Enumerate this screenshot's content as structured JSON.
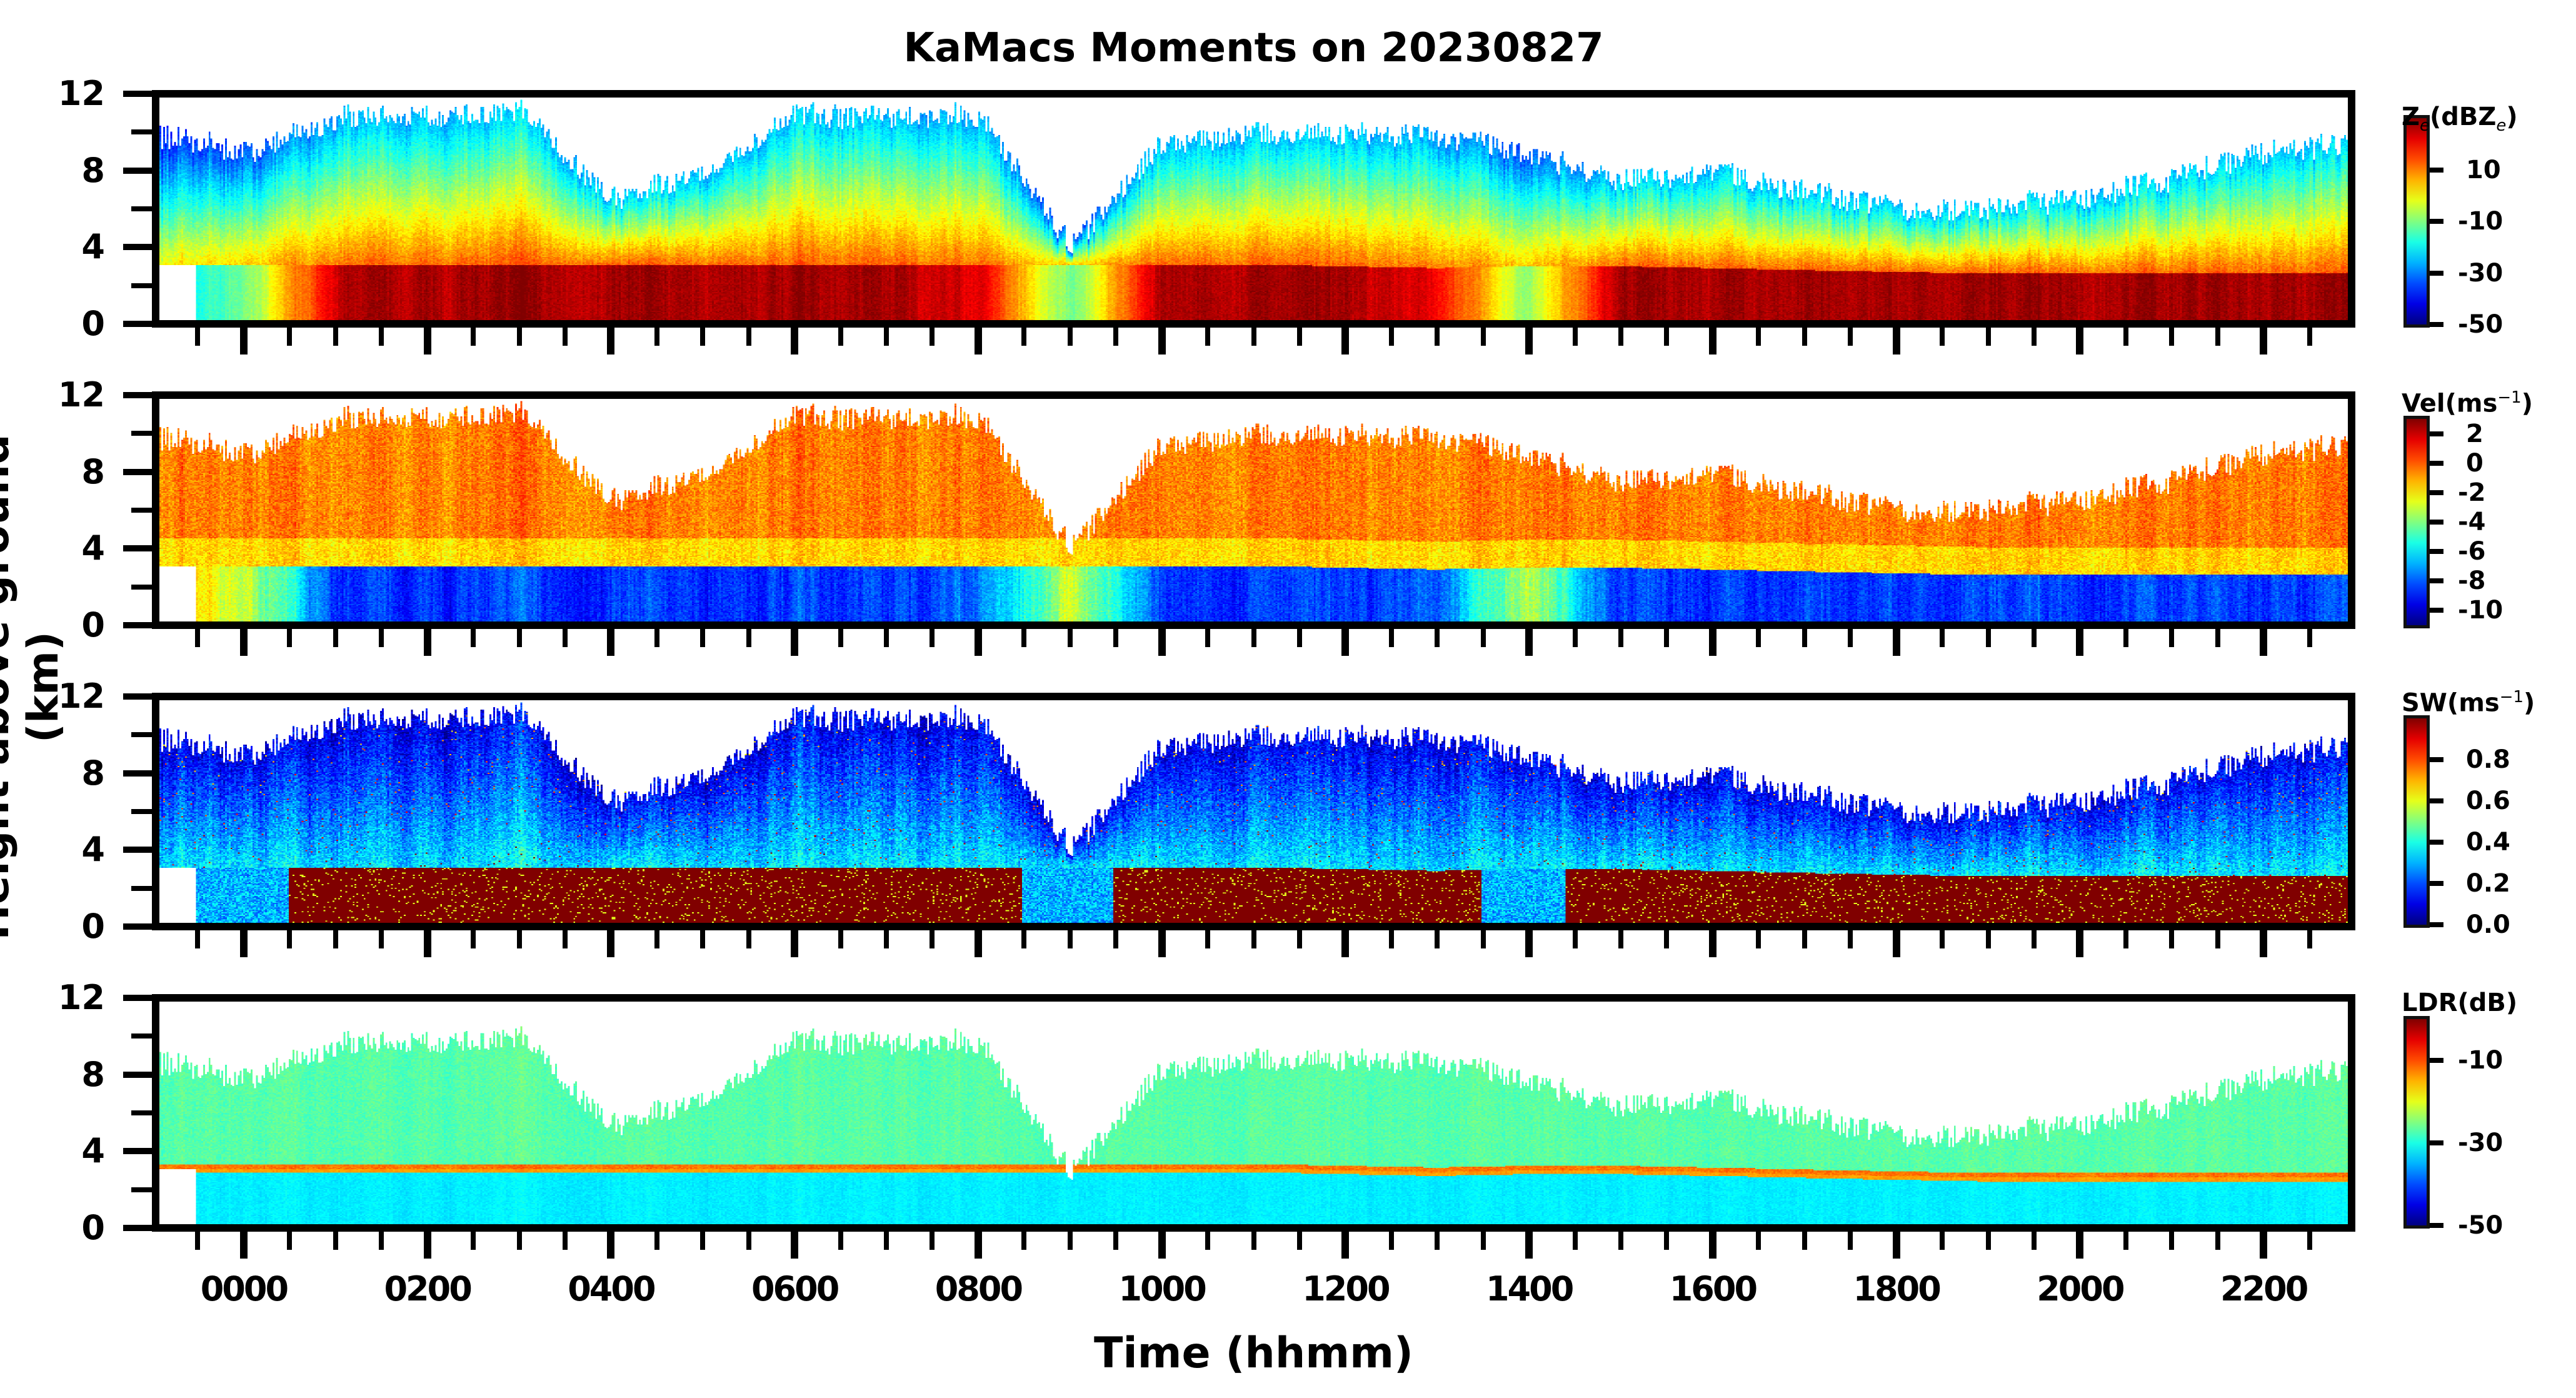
{
  "chart_data": {
    "type": "heatmap",
    "title": "KaMacs Moments on 20230827",
    "xlabel": "Time (hhmm)",
    "ylabel": "Height above ground (km)",
    "xlim_hours": [
      -1,
      23
    ],
    "x_major_ticks": [
      {
        "hour": 0,
        "label": "0000"
      },
      {
        "hour": 2,
        "label": "0200"
      },
      {
        "hour": 4,
        "label": "0400"
      },
      {
        "hour": 6,
        "label": "0600"
      },
      {
        "hour": 8,
        "label": "0800"
      },
      {
        "hour": 10,
        "label": "1000"
      },
      {
        "hour": 12,
        "label": "1200"
      },
      {
        "hour": 14,
        "label": "1400"
      },
      {
        "hour": 16,
        "label": "1600"
      },
      {
        "hour": 18,
        "label": "1800"
      },
      {
        "hour": 20,
        "label": "2000"
      },
      {
        "hour": 22,
        "label": "2200"
      }
    ],
    "x_minor_tick_step_hours": 0.5,
    "ylim_km": [
      0,
      12
    ],
    "y_major_ticks": [
      "0",
      "4",
      "8",
      "12"
    ],
    "y_minor_ticks": [
      2,
      6,
      10
    ],
    "grid": false,
    "colormap": "jet",
    "panels": [
      {
        "variable": "Ze",
        "colorbar_label_parts": [
          "Z",
          "e",
          "(dBZ",
          "e",
          ")"
        ],
        "clim": [
          -50,
          30
        ],
        "colorbar_ticks": [
          "10",
          "-10",
          "-30",
          "-50"
        ]
      },
      {
        "variable": "Vel",
        "colorbar_label_parts": [
          "Vel(ms",
          "−1",
          ")"
        ],
        "clim": [
          -11,
          3
        ],
        "colorbar_ticks": [
          "2",
          "0",
          "-2",
          "-4",
          "-6",
          "-8",
          "-10"
        ]
      },
      {
        "variable": "SW",
        "colorbar_label_parts": [
          "SW(ms",
          "−1",
          ")"
        ],
        "clim": [
          0,
          1.0
        ],
        "colorbar_ticks": [
          "0.8",
          "0.6",
          "0.4",
          "0.2",
          "0.0"
        ]
      },
      {
        "variable": "LDR",
        "colorbar_label_parts": [
          "LDR(dB)"
        ],
        "clim": [
          -50,
          0
        ],
        "colorbar_ticks": [
          "-10",
          "-30",
          "-50"
        ]
      }
    ],
    "approx_profile": {
      "hours": [
        -1,
        0,
        1,
        2,
        3,
        4,
        5,
        6,
        7,
        8,
        9,
        10,
        11,
        12,
        13,
        14,
        15,
        16,
        17,
        18,
        19,
        20,
        21,
        22,
        23
      ],
      "cloud_top_km": [
        10,
        9,
        11,
        11,
        11,
        6.5,
        8,
        11,
        11,
        11,
        4,
        9.5,
        10,
        10,
        10,
        9,
        7.5,
        8,
        7,
        6,
        6,
        6.5,
        7.5,
        9,
        9.5
      ],
      "melting_layer_km": [
        3,
        3,
        3,
        3,
        3,
        3,
        3,
        3,
        3,
        3,
        3,
        3,
        3,
        2.9,
        2.8,
        2.9,
        2.9,
        2.8,
        2.7,
        2.6,
        2.5,
        2.5,
        2.5,
        2.5,
        2.5
      ],
      "precip_intensity": [
        0,
        0.3,
        1,
        1,
        1,
        1,
        1,
        1,
        1,
        0.9,
        0.25,
        1,
        1,
        1,
        0.9,
        0.3,
        1,
        1,
        1,
        1,
        1,
        1,
        1,
        1,
        1
      ]
    }
  }
}
